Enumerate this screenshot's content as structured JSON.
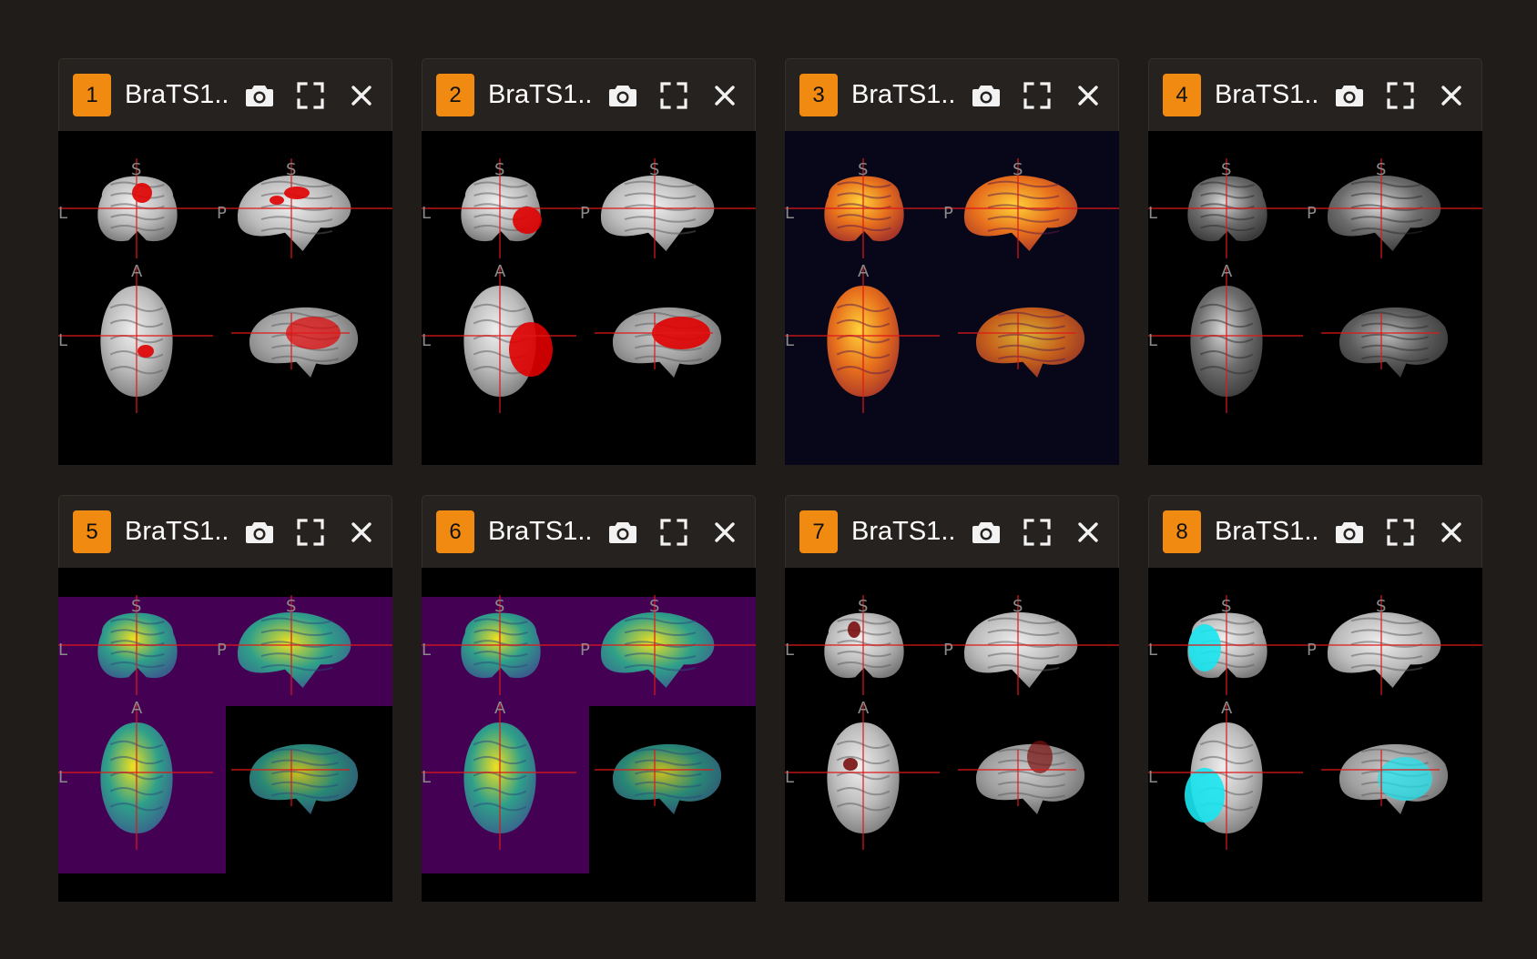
{
  "panels": [
    {
      "index": "1",
      "title": "BraTS1...",
      "style": "gray",
      "tumor": "#e00000",
      "bg": "#000000"
    },
    {
      "index": "2",
      "title": "BraTS1...",
      "style": "gray",
      "tumor": "#e00000",
      "bg": "#000000"
    },
    {
      "index": "3",
      "title": "BraTS1...",
      "style": "inferno",
      "tumor": "",
      "bg": "#08071a"
    },
    {
      "index": "4",
      "title": "BraTS1...",
      "style": "t2",
      "tumor": "",
      "bg": "#000000"
    },
    {
      "index": "5",
      "title": "BraTS1...",
      "style": "viridis",
      "tumor": "",
      "bg": "#440154"
    },
    {
      "index": "6",
      "title": "BraTS1...",
      "style": "viridis",
      "tumor": "",
      "bg": "#440154"
    },
    {
      "index": "7",
      "title": "BraTS1...",
      "style": "gray",
      "tumor": "#7a1010",
      "bg": "#000000"
    },
    {
      "index": "8",
      "title": "BraTS1...",
      "style": "gray",
      "tumor": "#19e6f0",
      "bg": "#000000"
    }
  ],
  "orientation_labels": {
    "superior": "S",
    "left": "L",
    "posterior": "P",
    "anterior": "A"
  },
  "icons": {
    "snapshot": "camera-icon",
    "maximize": "fullscreen-icon",
    "close": "close-icon"
  },
  "colors": {
    "badge": "#f18a10",
    "crosshair": "#e01818",
    "header": "#26221f",
    "background": "#1f1c1a"
  }
}
